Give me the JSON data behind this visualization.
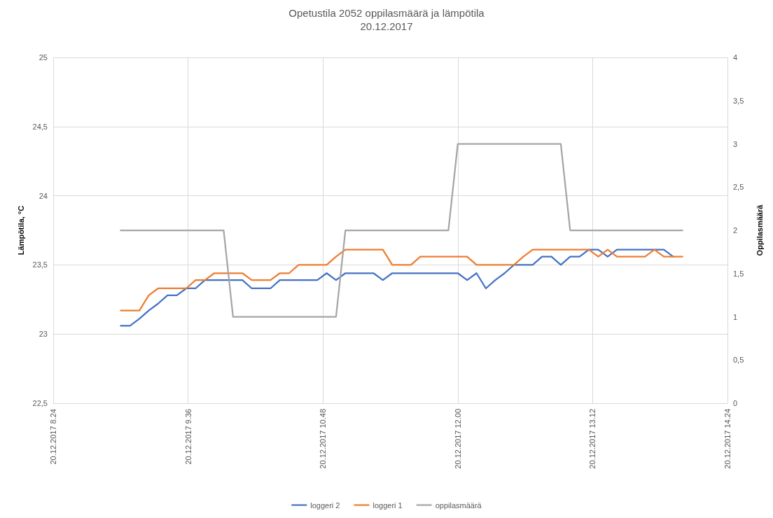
{
  "chart_data": {
    "type": "line",
    "title": "Opetustila 2052 oppilasmäärä ja lämpötila",
    "subtitle": "20.12.2017",
    "ylabel": "Lämpötila, °C",
    "y2label": "Oppilasmäärä",
    "x": [
      "2017-12-20T09:00",
      "2017-12-20T09:05",
      "2017-12-20T09:10",
      "2017-12-20T09:15",
      "2017-12-20T09:20",
      "2017-12-20T09:25",
      "2017-12-20T09:30",
      "2017-12-20T09:35",
      "2017-12-20T09:40",
      "2017-12-20T09:45",
      "2017-12-20T09:50",
      "2017-12-20T09:55",
      "2017-12-20T10:00",
      "2017-12-20T10:05",
      "2017-12-20T10:10",
      "2017-12-20T10:15",
      "2017-12-20T10:20",
      "2017-12-20T10:25",
      "2017-12-20T10:30",
      "2017-12-20T10:35",
      "2017-12-20T10:40",
      "2017-12-20T10:45",
      "2017-12-20T10:50",
      "2017-12-20T10:55",
      "2017-12-20T11:00",
      "2017-12-20T11:05",
      "2017-12-20T11:10",
      "2017-12-20T11:15",
      "2017-12-20T11:20",
      "2017-12-20T11:25",
      "2017-12-20T11:30",
      "2017-12-20T11:35",
      "2017-12-20T11:40",
      "2017-12-20T11:45",
      "2017-12-20T11:50",
      "2017-12-20T11:55",
      "2017-12-20T12:00",
      "2017-12-20T12:05",
      "2017-12-20T12:10",
      "2017-12-20T12:15",
      "2017-12-20T12:20",
      "2017-12-20T12:25",
      "2017-12-20T12:30",
      "2017-12-20T12:35",
      "2017-12-20T12:40",
      "2017-12-20T12:45",
      "2017-12-20T12:50",
      "2017-12-20T12:55",
      "2017-12-20T13:00",
      "2017-12-20T13:05",
      "2017-12-20T13:10",
      "2017-12-20T13:15",
      "2017-12-20T13:20",
      "2017-12-20T13:25",
      "2017-12-20T13:30",
      "2017-12-20T13:35",
      "2017-12-20T13:40",
      "2017-12-20T13:45",
      "2017-12-20T13:50",
      "2017-12-20T13:55",
      "2017-12-20T14:00"
    ],
    "series": [
      {
        "name": "loggeri 2",
        "color": "#4472c4",
        "values": [
          23.06,
          23.06,
          23.11,
          23.17,
          23.22,
          23.28,
          23.28,
          23.33,
          23.33,
          23.39,
          23.39,
          23.39,
          23.39,
          23.39,
          23.33,
          23.33,
          23.33,
          23.39,
          23.39,
          23.39,
          23.39,
          23.39,
          23.44,
          23.39,
          23.44,
          23.44,
          23.44,
          23.44,
          23.39,
          23.44,
          23.44,
          23.44,
          23.44,
          23.44,
          23.44,
          23.44,
          23.44,
          23.39,
          23.44,
          23.33,
          23.39,
          23.44,
          23.5,
          23.5,
          23.5,
          23.56,
          23.56,
          23.5,
          23.56,
          23.56,
          23.61,
          23.61,
          23.56,
          23.61,
          23.61,
          23.61,
          23.61,
          23.61,
          23.61,
          23.56,
          null
        ]
      },
      {
        "name": "loggeri 1",
        "color": "#ed7d31",
        "values": [
          23.17,
          23.17,
          23.17,
          23.28,
          23.33,
          23.33,
          23.33,
          23.33,
          23.39,
          23.39,
          23.44,
          23.44,
          23.44,
          23.44,
          23.39,
          23.39,
          23.39,
          23.44,
          23.44,
          23.5,
          23.5,
          23.5,
          23.5,
          23.56,
          23.61,
          23.61,
          23.61,
          23.61,
          23.61,
          23.5,
          23.5,
          23.5,
          23.56,
          23.56,
          23.56,
          23.56,
          23.56,
          23.56,
          23.5,
          23.5,
          23.5,
          23.5,
          23.5,
          23.56,
          23.61,
          23.61,
          23.61,
          23.61,
          23.61,
          23.61,
          23.61,
          23.56,
          23.61,
          23.56,
          23.56,
          23.56,
          23.56,
          23.61,
          23.56,
          23.56,
          23.56
        ]
      },
      {
        "name": "oppilasmäärä",
        "color": "#a5a5a5",
        "axis": "y2",
        "values": [
          2,
          2,
          2,
          2,
          2,
          2,
          2,
          2,
          2,
          2,
          2,
          2,
          1,
          1,
          1,
          1,
          1,
          1,
          1,
          1,
          1,
          1,
          1,
          1,
          2,
          2,
          2,
          2,
          2,
          2,
          2,
          2,
          2,
          2,
          2,
          2,
          3,
          3,
          3,
          3,
          3,
          3,
          3,
          3,
          3,
          3,
          3,
          3,
          2,
          2,
          2,
          2,
          2,
          2,
          2,
          2,
          2,
          2,
          2,
          2,
          2
        ]
      }
    ],
    "xlim": [
      "2017-12-20T08:24",
      "2017-12-20T14:24"
    ],
    "xticks": [
      {
        "value": "2017-12-20T08:24",
        "label": "20.12.2017 8.24"
      },
      {
        "value": "2017-12-20T09:36",
        "label": "20.12.2017 9.36"
      },
      {
        "value": "2017-12-20T10:48",
        "label": "20.12.2017 10.48"
      },
      {
        "value": "2017-12-20T12:00",
        "label": "20.12.2017 12.00"
      },
      {
        "value": "2017-12-20T13:12",
        "label": "20.12.2017 13.12"
      },
      {
        "value": "2017-12-20T14:24",
        "label": "20.12.2017 14.24"
      }
    ],
    "ylim": [
      22.5,
      25
    ],
    "yticks": [
      {
        "value": 22.5,
        "label": "22,5"
      },
      23,
      {
        "value": 23.5,
        "label": "23,5"
      },
      24,
      {
        "value": 24.5,
        "label": "24,5"
      },
      25
    ],
    "y2lim": [
      0,
      4
    ],
    "y2ticks": [
      0,
      {
        "value": 0.5,
        "label": "0,5"
      },
      1,
      {
        "value": 1.5,
        "label": "1,5"
      },
      2,
      {
        "value": 2.5,
        "label": "2,5"
      },
      3,
      {
        "value": 3.5,
        "label": "3,5"
      },
      4
    ],
    "grid": true,
    "legend": "bottom",
    "marker": "none",
    "line_style": "solid"
  }
}
